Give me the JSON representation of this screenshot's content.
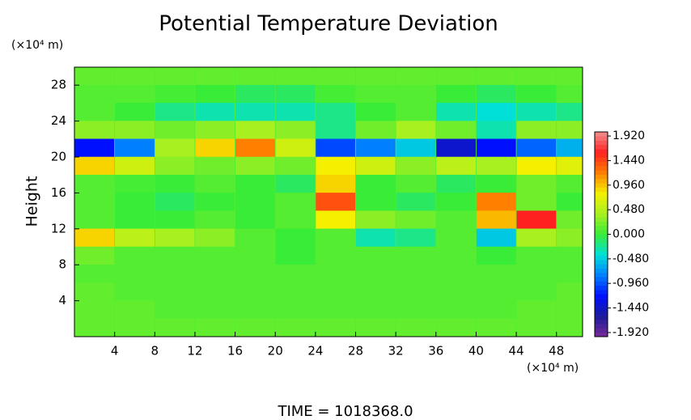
{
  "chart_data": {
    "type": "heatmap",
    "title": "Potential Temperature Deviation",
    "y_unit": "(×10⁴ m)",
    "y_label": "Height",
    "x_unit": "(×10⁴ m)",
    "footer": "TIME = 1018368.0",
    "xlim": [
      0,
      50.6
    ],
    "ylim": [
      0,
      30
    ],
    "xticks": [
      4,
      8,
      12,
      16,
      20,
      24,
      28,
      32,
      36,
      40,
      44,
      48
    ],
    "yticks": [
      4,
      8,
      12,
      16,
      20,
      24,
      28
    ],
    "x": [
      2,
      6,
      10,
      14,
      18,
      22,
      26,
      30,
      34,
      38,
      42,
      46,
      50
    ],
    "y": [
      29,
      27,
      25,
      23,
      21,
      19,
      17,
      15,
      13,
      11,
      9,
      7,
      5,
      3,
      1
    ],
    "z": [
      [
        0.15,
        0.15,
        0.15,
        0.15,
        0.15,
        0.15,
        0.15,
        0.15,
        0.15,
        0.15,
        0.15,
        0.15,
        0.15
      ],
      [
        0.1,
        0.1,
        0.05,
        0.0,
        -0.1,
        -0.1,
        0.05,
        0.1,
        0.1,
        0.0,
        -0.1,
        0.0,
        0.1
      ],
      [
        0.1,
        0.0,
        -0.2,
        -0.3,
        -0.3,
        -0.3,
        -0.2,
        0.0,
        0.1,
        -0.3,
        -0.4,
        -0.3,
        -0.2
      ],
      [
        0.3,
        0.3,
        0.2,
        0.3,
        0.4,
        0.3,
        -0.2,
        0.2,
        0.4,
        0.2,
        -0.3,
        0.3,
        0.3
      ],
      [
        -1.2,
        -0.8,
        0.4,
        0.9,
        1.2,
        0.6,
        -1.0,
        -0.8,
        -0.5,
        -1.4,
        -1.2,
        -0.9,
        -0.6
      ],
      [
        0.9,
        0.6,
        0.3,
        0.2,
        0.3,
        0.2,
        0.8,
        0.6,
        0.3,
        0.5,
        0.4,
        0.8,
        0.7
      ],
      [
        0.1,
        0.05,
        0.0,
        0.1,
        0.0,
        -0.1,
        0.9,
        0.0,
        0.1,
        -0.1,
        0.0,
        0.2,
        0.1
      ],
      [
        0.1,
        0.0,
        -0.1,
        0.0,
        0.0,
        0.1,
        1.4,
        0.0,
        -0.1,
        0.0,
        1.2,
        0.2,
        0.0
      ],
      [
        0.1,
        0.0,
        0.0,
        0.1,
        0.0,
        0.1,
        0.8,
        0.3,
        0.2,
        0.1,
        1.0,
        1.6,
        0.2
      ],
      [
        0.9,
        0.5,
        0.4,
        0.3,
        0.1,
        0.0,
        0.1,
        -0.3,
        -0.2,
        0.1,
        -0.5,
        0.4,
        0.3
      ],
      [
        0.2,
        0.1,
        0.1,
        0.1,
        0.1,
        0.0,
        0.1,
        0.1,
        0.1,
        0.1,
        0.0,
        0.1,
        0.1
      ],
      [
        0.1,
        0.1,
        0.1,
        0.1,
        0.1,
        0.1,
        0.1,
        0.1,
        0.1,
        0.1,
        0.1,
        0.1,
        0.1
      ],
      [
        0.15,
        0.1,
        0.1,
        0.1,
        0.1,
        0.1,
        0.1,
        0.1,
        0.1,
        0.1,
        0.1,
        0.1,
        0.15
      ],
      [
        0.15,
        0.15,
        0.1,
        0.1,
        0.1,
        0.1,
        0.1,
        0.1,
        0.1,
        0.1,
        0.1,
        0.15,
        0.15
      ],
      [
        0.15,
        0.15,
        0.15,
        0.15,
        0.15,
        0.15,
        0.15,
        0.15,
        0.15,
        0.15,
        0.15,
        0.15,
        0.15
      ]
    ],
    "clim": [
      -2.0,
      2.0
    ],
    "colorbar_ticks": [
      {
        "value": 1.92,
        "label": "1.920"
      },
      {
        "value": 1.44,
        "label": "1.440"
      },
      {
        "value": 0.96,
        "label": "0.960"
      },
      {
        "value": 0.48,
        "label": "0.480"
      },
      {
        "value": 0,
        "label": "0.000"
      },
      {
        "value": -0.48,
        "label": "-0.480"
      },
      {
        "value": -0.96,
        "label": "-0.960"
      },
      {
        "value": -1.44,
        "label": "-1.440"
      },
      {
        "value": -1.92,
        "label": "-1.920"
      }
    ],
    "colormap": {
      "stops": [
        -2.0,
        -1.6,
        -1.2,
        -0.8,
        -0.4,
        0,
        0.4,
        0.8,
        1.2,
        1.6,
        2.0
      ],
      "colors": [
        "#7a2a9a",
        "#1a1a9a",
        "#0010ff",
        "#0080ff",
        "#00e0d8",
        "#38ec38",
        "#a8f020",
        "#f4f000",
        "#ff8000",
        "#ff2020",
        "#f09090"
      ]
    }
  }
}
